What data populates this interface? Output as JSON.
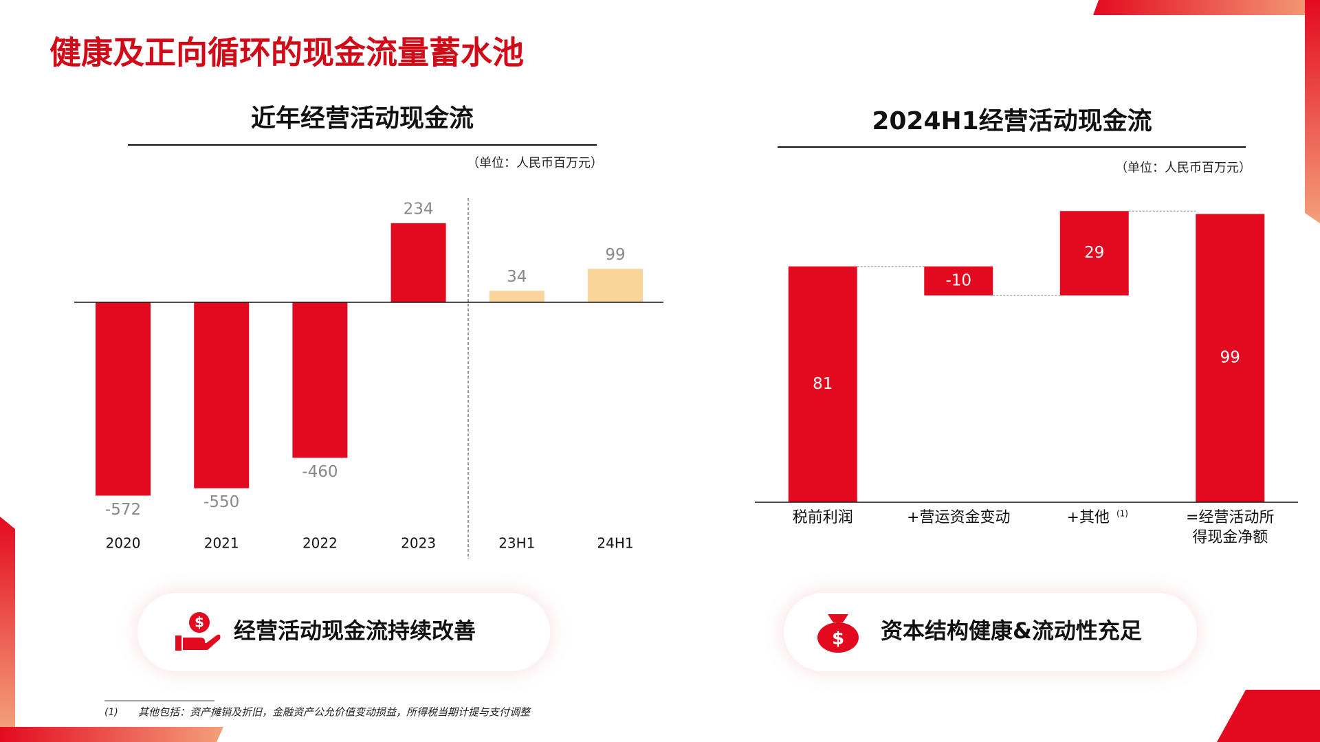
{
  "title": "健康及正向循环的现金流量蓄水池",
  "chart_data": [
    {
      "type": "bar",
      "title": "近年经营活动现金流",
      "unit": "（单位：人民币百万元）",
      "categories": [
        "2020",
        "2021",
        "2022",
        "2023",
        "23H1",
        "24H1"
      ],
      "values": [
        -572,
        -550,
        -460,
        234,
        34,
        99
      ],
      "colors": [
        "#e30a20",
        "#e30a20",
        "#e30a20",
        "#e30a20",
        "#f9d59b",
        "#f9d59b"
      ],
      "ylim": [
        -650,
        300
      ]
    },
    {
      "type": "waterfall",
      "title": "2024H1经营活动现金流",
      "unit": "（单位：人民币百万元）",
      "categories": [
        "税前利润",
        "+营运资金变动",
        "+其他",
        "=经营活动所得现金净额"
      ],
      "category_notes": [
        null,
        null,
        "(1)",
        null
      ],
      "values": [
        81,
        -10,
        29,
        99
      ],
      "measures": [
        "relative",
        "relative",
        "relative",
        "total"
      ],
      "color": "#e30a20",
      "ylim": [
        0,
        105
      ]
    }
  ],
  "callouts": [
    "经营活动现金流持续改善",
    "资本结构健康&流动性充足"
  ],
  "footnote": {
    "marker": "(1)",
    "text": "其他包括：资产摊销及折旧，金融资产公允价值变动损益，所得税当期计提与支付调整"
  }
}
